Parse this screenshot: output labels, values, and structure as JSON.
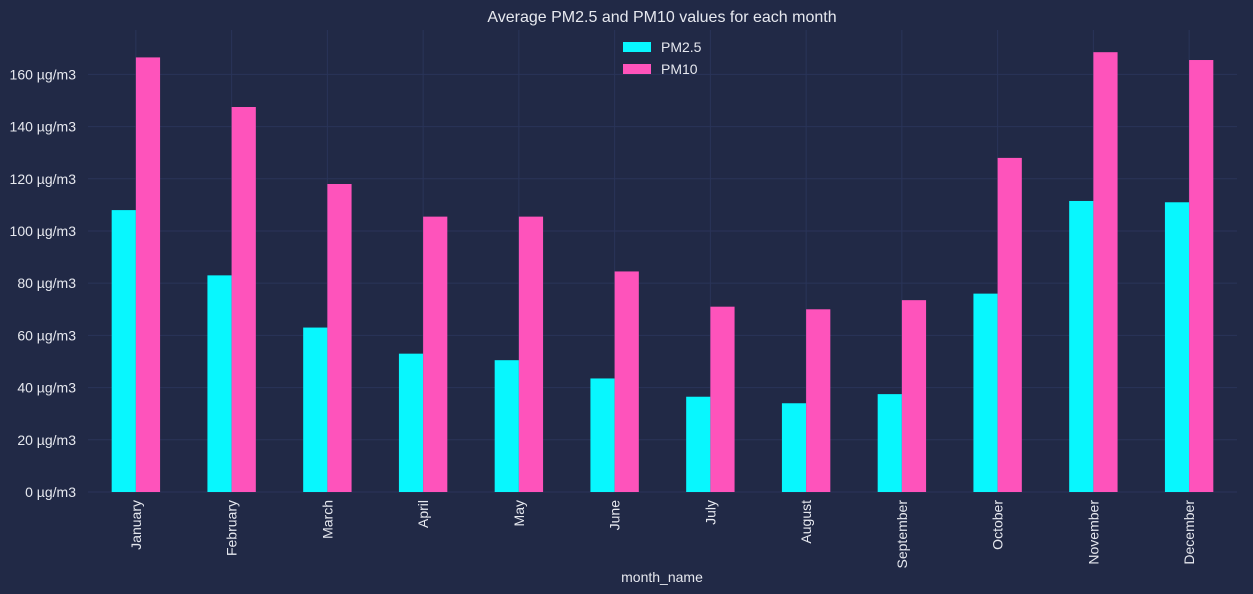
{
  "colors": {
    "background": "#212946",
    "grid": "#2a3459",
    "text": "#e6e8ef"
  },
  "chart_data": {
    "type": "bar",
    "title": "Average PM2.5 and PM10 values for each month",
    "xlabel": "month_name",
    "ylabel": "",
    "ylim": [
      0,
      177
    ],
    "y_ticks": [
      0,
      20,
      40,
      60,
      80,
      100,
      120,
      140,
      160
    ],
    "y_tick_labels": [
      "0 µg/m3",
      "20 µg/m3",
      "40 µg/m3",
      "60 µg/m3",
      "80 µg/m3",
      "100 µg/m3",
      "120 µg/m3",
      "140 µg/m3",
      "160 µg/m3"
    ],
    "grid": true,
    "legend_position": "top-center",
    "categories": [
      "January",
      "February",
      "March",
      "April",
      "May",
      "June",
      "July",
      "August",
      "September",
      "October",
      "November",
      "December"
    ],
    "series": [
      {
        "name": "PM2.5",
        "color": "#08f7fe",
        "values": [
          108,
          83,
          63,
          53,
          50.5,
          43.5,
          36.5,
          34,
          37.5,
          76,
          111.5,
          111
        ]
      },
      {
        "name": "PM10",
        "color": "#fe53bb",
        "values": [
          166.5,
          147.5,
          118,
          105.5,
          105.5,
          84.5,
          71,
          70,
          73.5,
          128,
          168.5,
          165.5
        ]
      }
    ]
  }
}
